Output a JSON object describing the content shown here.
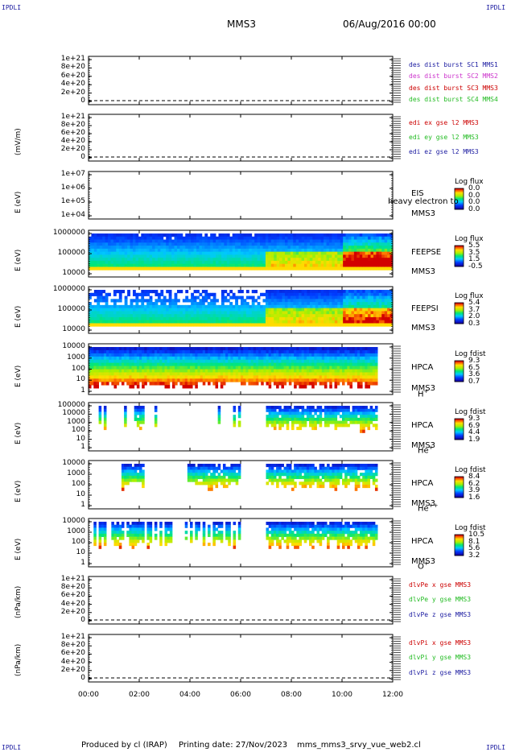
{
  "corner_label": "IPDLI",
  "header": {
    "spacecraft": "MMS3",
    "date": "06/Aug/2016 00:00"
  },
  "footer": {
    "producer": "Produced by cl (IRAP)",
    "printed": "Printing date: 27/Nov/2023",
    "script": "mms_mms3_srvy_vue_web2.cl"
  },
  "colors": {
    "blue": "#1a1aa0",
    "magenta": "#cc33cc",
    "red": "#cc0000",
    "green": "#22bb22"
  },
  "chart_data": {
    "type": "heatmap",
    "x_range": [
      "00:00",
      "12:00"
    ],
    "x_ticks": [
      "00:00",
      "02:00",
      "04:00",
      "06:00",
      "08:00",
      "10:00",
      "12:00"
    ],
    "panels": [
      {
        "id": "p1",
        "ylabel": "",
        "yticks": [
          "1e+21",
          "8e+20",
          "6e+20",
          "4e+20",
          "2e+20",
          "0"
        ],
        "legend": [
          {
            "text": "des dist burst SC1 MMS1",
            "color": "#1a1aa0"
          },
          {
            "text": "des dist burst SC2 MMS2",
            "color": "#cc33cc"
          },
          {
            "text": "des dist burst SC3 MMS3",
            "color": "#cc0000"
          },
          {
            "text": "des dist burst SC4 MMS4",
            "color": "#22bb22"
          }
        ]
      },
      {
        "id": "p2",
        "ylabel": "(mV/m)",
        "yticks": [
          "1e+21",
          "8e+20",
          "6e+20",
          "4e+20",
          "2e+20",
          "0"
        ],
        "legend": [
          {
            "text": "edi ex gse l2 MMS3",
            "color": "#cc0000"
          },
          {
            "text": "edi ey gse l2 MMS3",
            "color": "#22bb22"
          },
          {
            "text": "edi ez gse l2 MMS3",
            "color": "#1a1aa0"
          }
        ]
      },
      {
        "id": "p3",
        "ylabel": "E (eV)",
        "yticks": [
          "1e+07",
          "1e+06",
          "1e+05",
          "1e+04"
        ],
        "labels": [
          "EIS",
          "MMS3"
        ],
        "overlay": "heavy electron to",
        "colorbar": {
          "title": "Log flux",
          "ticks": [
            "0.0",
            "0.0",
            "0.0",
            "0.0"
          ]
        }
      },
      {
        "id": "p4",
        "ylabel": "E (eV)",
        "yticks": [
          "1000000",
          "100000",
          "10000"
        ],
        "labels": [
          "FEEPSE",
          "MMS3"
        ],
        "colorbar": {
          "title": "Log flux",
          "ticks": [
            "5.5",
            "3.5",
            "1.5",
            "-0.5"
          ]
        }
      },
      {
        "id": "p5",
        "ylabel": "E (eV)",
        "yticks": [
          "1000000",
          "100000",
          "10000"
        ],
        "labels": [
          "FEEPSI",
          "MMS3"
        ],
        "colorbar": {
          "title": "Log flux",
          "ticks": [
            "5.4",
            "3.7",
            "2.0",
            "0.3"
          ]
        }
      },
      {
        "id": "p6",
        "ylabel": "E (eV)",
        "yticks": [
          "10000",
          "1000",
          "100",
          "10",
          "1"
        ],
        "labels": [
          "HPCA",
          "MMS3"
        ],
        "species": "H",
        "charge": "+",
        "colorbar": {
          "title": "Log fdist",
          "ticks": [
            "9.3",
            "6.5",
            "3.6",
            "0.7"
          ]
        }
      },
      {
        "id": "p7",
        "ylabel": "E (eV)",
        "yticks": [
          "100000",
          "10000",
          "1000",
          "100",
          "10",
          "1"
        ],
        "labels": [
          "HPCA",
          "MMS3"
        ],
        "species": "He",
        "charge": "+",
        "colorbar": {
          "title": "Log fdist",
          "ticks": [
            "9.3",
            "6.9",
            "4.4",
            "1.9"
          ]
        }
      },
      {
        "id": "p8",
        "ylabel": "E (eV)",
        "yticks": [
          "10000",
          "1000",
          "100",
          "10",
          "1"
        ],
        "labels": [
          "HPCA",
          "MMS3"
        ],
        "species": "He",
        "charge": "++",
        "colorbar": {
          "title": "Log fdist",
          "ticks": [
            "8.4",
            "6.2",
            "3.9",
            "1.6"
          ]
        }
      },
      {
        "id": "p9",
        "ylabel": "E (eV)",
        "yticks": [
          "10000",
          "1000",
          "100",
          "10",
          "1"
        ],
        "labels": [
          "HPCA",
          "MMS3"
        ],
        "species": "O",
        "charge": "+",
        "colorbar": {
          "title": "Log fdist",
          "ticks": [
            "10.5",
            "8.1",
            "5.6",
            "3.2"
          ]
        }
      },
      {
        "id": "p10",
        "ylabel": "(nPa/km)",
        "yticks": [
          "1e+21",
          "8e+20",
          "6e+20",
          "4e+20",
          "2e+20",
          "0"
        ],
        "legend": [
          {
            "text": "dlvPe x gse MMS3",
            "color": "#cc0000"
          },
          {
            "text": "dlvPe y gse MMS3",
            "color": "#22bb22"
          },
          {
            "text": "dlvPe z gse MMS3",
            "color": "#1a1aa0"
          }
        ]
      },
      {
        "id": "p11",
        "ylabel": "(nPa/km)",
        "yticks": [
          "1e+21",
          "8e+20",
          "6e+20",
          "4e+20",
          "2e+20",
          "0"
        ],
        "legend": [
          {
            "text": "dlvPi x gse MMS3",
            "color": "#cc0000"
          },
          {
            "text": "dlvPi y gse MMS3",
            "color": "#22bb22"
          },
          {
            "text": "dlvPi z gse MMS3",
            "color": "#1a1aa0"
          }
        ]
      }
    ]
  }
}
